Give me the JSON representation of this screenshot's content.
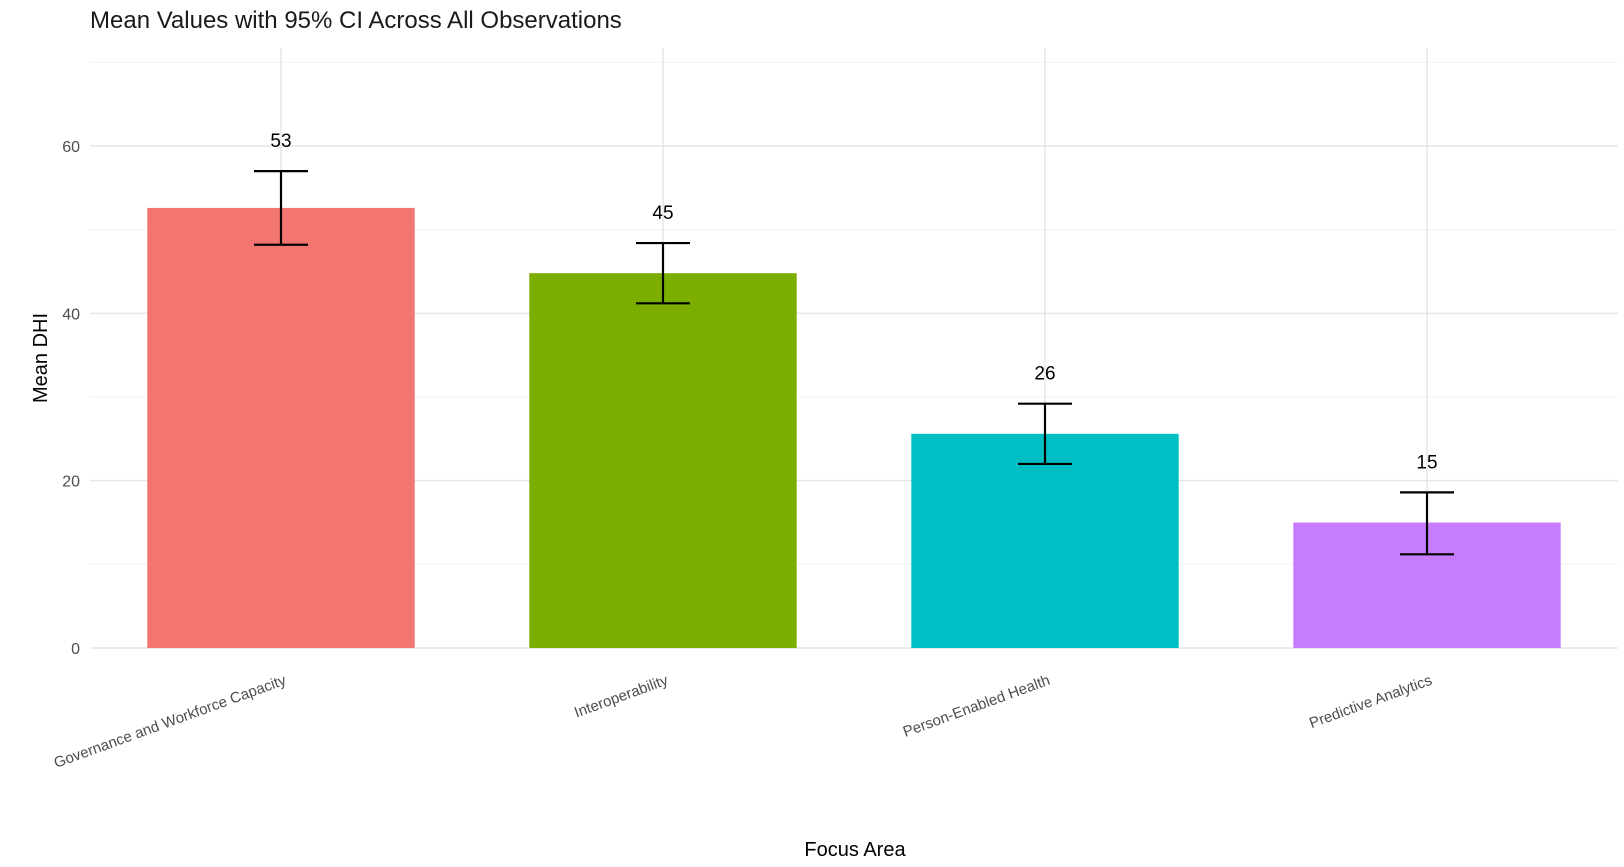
{
  "chart_data": {
    "type": "bar",
    "title": "Mean Values with 95% CI Across All Observations",
    "xlabel": "Focus Area",
    "ylabel": "Mean DHI",
    "ylim": [
      0,
      72
    ],
    "yticks": [
      0,
      20,
      40,
      60
    ],
    "grid": true,
    "legend": "none",
    "categories": [
      "Governance and Workforce Capacity",
      "Interoperability",
      "Person-Enabled Health",
      "Predictive Analytics"
    ],
    "values": [
      52.6,
      44.8,
      25.6,
      15.0
    ],
    "ci_lower": [
      48.2,
      41.2,
      22.0,
      11.2
    ],
    "ci_upper": [
      57.0,
      48.4,
      29.2,
      18.6
    ],
    "data_labels": [
      "53",
      "45",
      "26",
      "15"
    ],
    "colors": [
      "#F37570",
      "#7CAE00",
      "#00BFC4",
      "#C77CFF"
    ]
  }
}
